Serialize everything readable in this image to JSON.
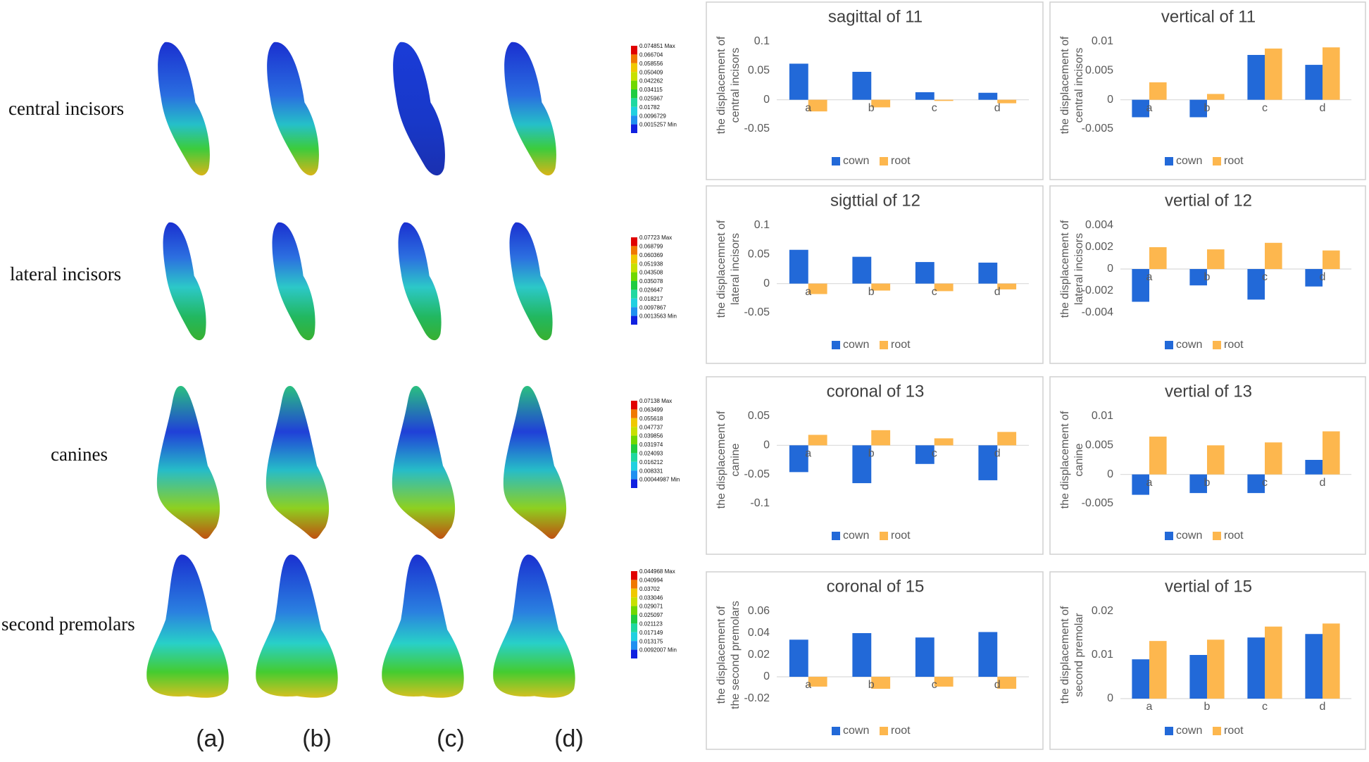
{
  "row_labels": [
    "central incisors",
    "lateral incisors",
    "canines",
    "second premolars"
  ],
  "column_labels": [
    "(a)",
    "(b)",
    "(c)",
    "(d)"
  ],
  "color_scales": [
    [
      "0.074851 Max",
      "0.066704",
      "0.058556",
      "0.050409",
      "0.042262",
      "0.034115",
      "0.025967",
      "0.01782",
      "0.0096729",
      "0.0015257 Min"
    ],
    [
      "0.07723 Max",
      "0.068799",
      "0.060369",
      "0.051938",
      "0.043508",
      "0.035078",
      "0.026647",
      "0.018217",
      "0.0097867",
      "0.0013563 Min"
    ],
    [
      "0.07138 Max",
      "0.063499",
      "0.055618",
      "0.047737",
      "0.039856",
      "0.031974",
      "0.024093",
      "0.016212",
      "0.008331",
      "0.00044987 Min"
    ],
    [
      "0.044968 Max",
      "0.040994",
      "0.03702",
      "0.033046",
      "0.029071",
      "0.025097",
      "0.021123",
      "0.017149",
      "0.013175",
      "0.0092007 Min"
    ]
  ],
  "chart_data": [
    {
      "type": "bar",
      "title": "sagittal of 11",
      "y_label": [
        "the displacement of",
        "central incisors"
      ],
      "categories": [
        "a",
        "b",
        "c",
        "d"
      ],
      "ylim": [
        -0.05,
        0.1
      ],
      "yticks": [
        -0.05,
        0,
        0.05,
        0.1
      ],
      "series": [
        {
          "name": "cown",
          "color": "#2269d8",
          "values": [
            0.062,
            0.048,
            0.013,
            0.012
          ]
        },
        {
          "name": "root",
          "color": "#fdb74e",
          "values": [
            -0.02,
            -0.013,
            -0.002,
            -0.006
          ]
        }
      ]
    },
    {
      "type": "bar",
      "title": "vertical of 11",
      "y_label": [
        "the displacement of",
        "central incisors"
      ],
      "categories": [
        "a",
        "b",
        "c",
        "d"
      ],
      "ylim": [
        -0.005,
        0.01
      ],
      "yticks": [
        -0.005,
        0,
        0.005,
        0.01
      ],
      "series": [
        {
          "name": "cown",
          "color": "#2269d8",
          "values": [
            -0.003,
            -0.003,
            0.0077,
            0.006
          ]
        },
        {
          "name": "root",
          "color": "#fdb74e",
          "values": [
            0.003,
            0.001,
            0.0088,
            0.009
          ]
        }
      ]
    },
    {
      "type": "bar",
      "title": "sigttial of 12",
      "y_label": [
        "the displacemnet of",
        "lateral incisors"
      ],
      "categories": [
        "a",
        "b",
        "c",
        "d"
      ],
      "ylim": [
        -0.05,
        0.1
      ],
      "yticks": [
        -0.05,
        0,
        0.05,
        0.1
      ],
      "series": [
        {
          "name": "cown",
          "color": "#2269d8",
          "values": [
            0.058,
            0.046,
            0.037,
            0.036
          ]
        },
        {
          "name": "root",
          "color": "#fdb74e",
          "values": [
            -0.018,
            -0.012,
            -0.013,
            -0.01
          ]
        }
      ]
    },
    {
      "type": "bar",
      "title": "vertial of 12",
      "y_label": [
        "the displacement of",
        "lateral incisors"
      ],
      "categories": [
        "a",
        "b",
        "c",
        "d"
      ],
      "ylim": [
        -0.004,
        0.004
      ],
      "yticks": [
        -0.004,
        -0.002,
        0,
        0.002,
        0.004
      ],
      "series": [
        {
          "name": "cown",
          "color": "#2269d8",
          "values": [
            -0.003,
            -0.0015,
            -0.0028,
            -0.0016
          ]
        },
        {
          "name": "root",
          "color": "#fdb74e",
          "values": [
            0.002,
            0.0018,
            0.0024,
            0.0017
          ]
        }
      ]
    },
    {
      "type": "bar",
      "title": "coronal of 13",
      "y_label": [
        "the displacement of",
        "canine"
      ],
      "categories": [
        "a",
        "b",
        "c",
        "d"
      ],
      "ylim": [
        -0.1,
        0.05
      ],
      "yticks": [
        -0.1,
        -0.05,
        0,
        0.05
      ],
      "series": [
        {
          "name": "cown",
          "color": "#2269d8",
          "values": [
            -0.046,
            -0.065,
            -0.032,
            -0.06
          ]
        },
        {
          "name": "root",
          "color": "#fdb74e",
          "values": [
            0.018,
            0.026,
            0.012,
            0.023
          ]
        }
      ]
    },
    {
      "type": "bar",
      "title": "vertial of 13",
      "y_label": [
        "the displacement of",
        "canine"
      ],
      "categories": [
        "a",
        "b",
        "c",
        "d"
      ],
      "ylim": [
        -0.005,
        0.01
      ],
      "yticks": [
        -0.005,
        0,
        0.005,
        0.01
      ],
      "series": [
        {
          "name": "cown",
          "color": "#2269d8",
          "values": [
            -0.0035,
            -0.0032,
            -0.0032,
            0.0025
          ]
        },
        {
          "name": "root",
          "color": "#fdb74e",
          "values": [
            0.0065,
            0.005,
            0.0055,
            0.0074
          ]
        }
      ]
    },
    {
      "type": "bar",
      "title": "coronal of 15",
      "y_label": [
        "the displacement of",
        "the second premolars"
      ],
      "categories": [
        "a",
        "b",
        "c",
        "d"
      ],
      "ylim": [
        -0.02,
        0.06
      ],
      "yticks": [
        -0.02,
        0,
        0.02,
        0.04,
        0.06
      ],
      "series": [
        {
          "name": "cown",
          "color": "#2269d8",
          "values": [
            0.034,
            0.04,
            0.036,
            0.041
          ]
        },
        {
          "name": "root",
          "color": "#fdb74e",
          "values": [
            -0.009,
            -0.011,
            -0.009,
            -0.011
          ]
        }
      ]
    },
    {
      "type": "bar",
      "title": "vertial of 15",
      "y_label": [
        "the displacement of",
        "second premolar"
      ],
      "categories": [
        "a",
        "b",
        "c",
        "d"
      ],
      "ylim": [
        0,
        0.02
      ],
      "yticks": [
        0,
        0.01,
        0.02
      ],
      "series": [
        {
          "name": "cown",
          "color": "#2269d8",
          "values": [
            0.009,
            0.01,
            0.014,
            0.0148
          ]
        },
        {
          "name": "root",
          "color": "#fdb74e",
          "values": [
            0.0132,
            0.0135,
            0.0165,
            0.0172
          ]
        }
      ]
    }
  ]
}
